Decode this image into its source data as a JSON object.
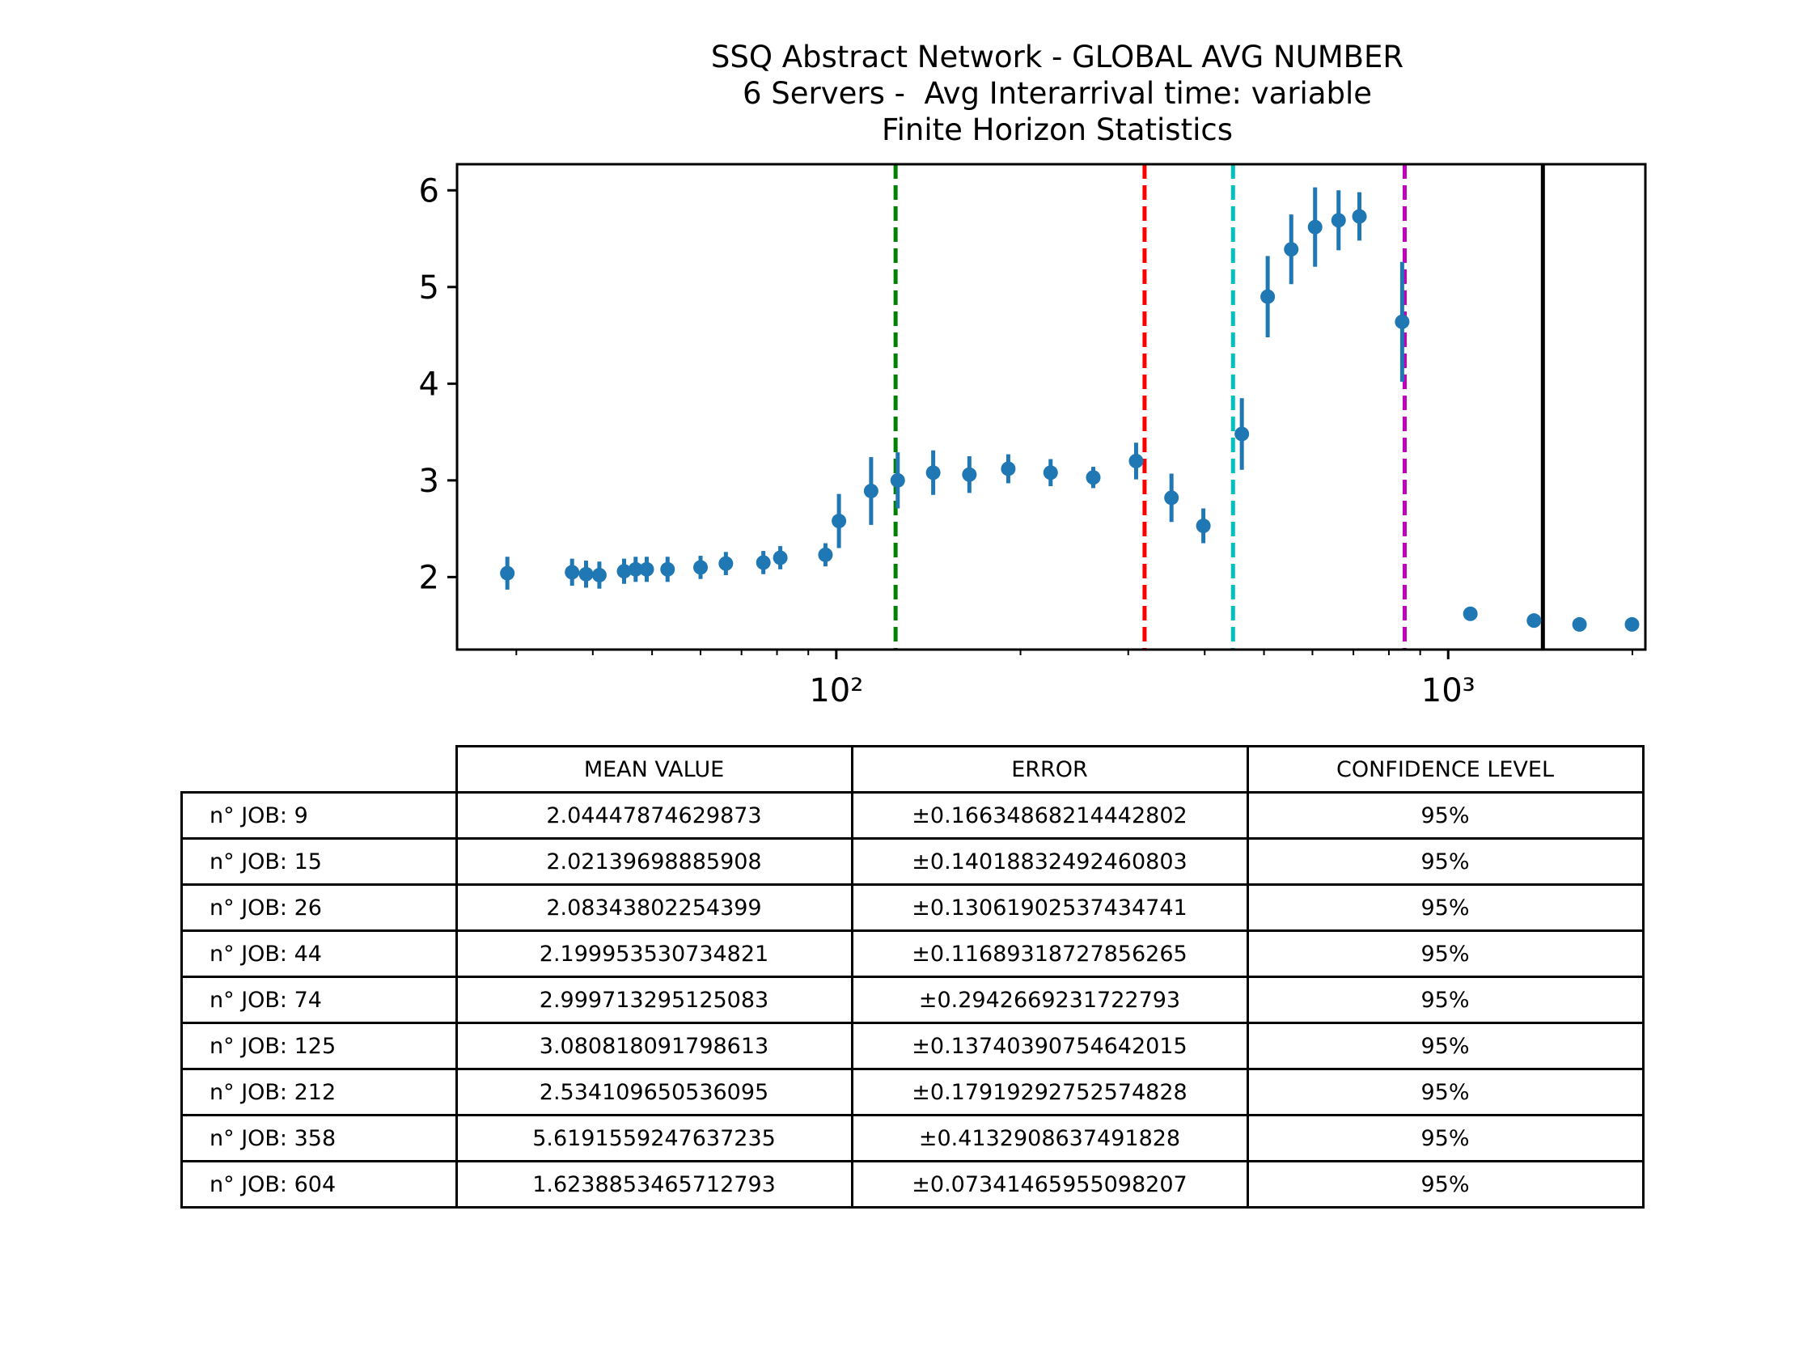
{
  "title_lines": [
    "SSQ Abstract Network - GLOBAL AVG NUMBER",
    "6 Servers -  Avg Interarrival time: variable",
    "Finite Horizon Statistics"
  ],
  "chart_data": {
    "type": "scatter",
    "title": "SSQ Abstract Network - GLOBAL AVG NUMBER\n6 Servers -  Avg Interarrival time: variable\nFinite Horizon Statistics",
    "xlabel": "",
    "ylabel": "",
    "xscale": "log",
    "xlim": [
      24,
      2100
    ],
    "ylim": [
      1.25,
      6.27
    ],
    "grid": false,
    "xticks": [
      {
        "value": 100,
        "label": "10²"
      },
      {
        "value": 1000,
        "label": "10³"
      }
    ],
    "yticks": [
      2,
      3,
      4,
      5,
      6
    ],
    "marker_color": "#1f77b4",
    "points": [
      {
        "x": 29,
        "y": 2.04,
        "err": 0.17
      },
      {
        "x": 37,
        "y": 2.05,
        "err": 0.14
      },
      {
        "x": 39,
        "y": 2.03,
        "err": 0.14
      },
      {
        "x": 41,
        "y": 2.02,
        "err": 0.14
      },
      {
        "x": 45,
        "y": 2.06,
        "err": 0.13
      },
      {
        "x": 47,
        "y": 2.08,
        "err": 0.13
      },
      {
        "x": 49,
        "y": 2.08,
        "err": 0.13
      },
      {
        "x": 53,
        "y": 2.08,
        "err": 0.13
      },
      {
        "x": 60,
        "y": 2.1,
        "err": 0.12
      },
      {
        "x": 66,
        "y": 2.14,
        "err": 0.12
      },
      {
        "x": 76,
        "y": 2.15,
        "err": 0.12
      },
      {
        "x": 81,
        "y": 2.2,
        "err": 0.12
      },
      {
        "x": 96,
        "y": 2.23,
        "err": 0.12
      },
      {
        "x": 101,
        "y": 2.58,
        "err": 0.28
      },
      {
        "x": 114,
        "y": 2.89,
        "err": 0.35
      },
      {
        "x": 126,
        "y": 3.0,
        "err": 0.29
      },
      {
        "x": 144,
        "y": 3.08,
        "err": 0.23
      },
      {
        "x": 165,
        "y": 3.06,
        "err": 0.19
      },
      {
        "x": 191,
        "y": 3.12,
        "err": 0.15
      },
      {
        "x": 224,
        "y": 3.08,
        "err": 0.14
      },
      {
        "x": 263,
        "y": 3.03,
        "err": 0.11
      },
      {
        "x": 309,
        "y": 3.2,
        "err": 0.19
      },
      {
        "x": 353,
        "y": 2.82,
        "err": 0.25
      },
      {
        "x": 398,
        "y": 2.53,
        "err": 0.18
      },
      {
        "x": 460,
        "y": 3.48,
        "err": 0.37
      },
      {
        "x": 507,
        "y": 4.9,
        "err": 0.42
      },
      {
        "x": 554,
        "y": 5.39,
        "err": 0.36
      },
      {
        "x": 606,
        "y": 5.62,
        "err": 0.41
      },
      {
        "x": 662,
        "y": 5.69,
        "err": 0.31
      },
      {
        "x": 716,
        "y": 5.73,
        "err": 0.25
      },
      {
        "x": 841,
        "y": 4.64,
        "err": 0.62
      },
      {
        "x": 1087,
        "y": 1.62,
        "err": 0.07
      },
      {
        "x": 1381,
        "y": 1.55,
        "err": 0.05
      },
      {
        "x": 1639,
        "y": 1.51,
        "err": 0.04
      },
      {
        "x": 1997,
        "y": 1.51,
        "err": 0.03
      }
    ],
    "vlines": [
      {
        "x": 125,
        "color": "#008000",
        "style": "dashed"
      },
      {
        "x": 319,
        "color": "#ff0000",
        "style": "dashed"
      },
      {
        "x": 445,
        "color": "#00bfbf",
        "style": "dashed"
      },
      {
        "x": 849,
        "color": "#bf00bf",
        "style": "dashed"
      },
      {
        "x": 1428,
        "color": "#000000",
        "style": "solid"
      }
    ]
  },
  "table": {
    "headers": [
      "MEAN VALUE",
      "ERROR",
      "CONFIDENCE LEVEL"
    ],
    "rows": [
      {
        "label": "n° JOB: 9",
        "mean": "2.04447874629873",
        "error": "±0.16634868214442802",
        "conf": "95%"
      },
      {
        "label": "n° JOB: 15",
        "mean": "2.02139698885908",
        "error": "±0.14018832492460803",
        "conf": "95%"
      },
      {
        "label": "n° JOB: 26",
        "mean": "2.08343802254399",
        "error": "±0.13061902537434741",
        "conf": "95%"
      },
      {
        "label": "n° JOB: 44",
        "mean": "2.199953530734821",
        "error": "±0.11689318727856265",
        "conf": "95%"
      },
      {
        "label": "n° JOB: 74",
        "mean": "2.999713295125083",
        "error": "±0.2942669231722793",
        "conf": "95%"
      },
      {
        "label": "n° JOB: 125",
        "mean": "3.080818091798613",
        "error": "±0.13740390754642015",
        "conf": "95%"
      },
      {
        "label": "n° JOB: 212",
        "mean": "2.534109650536095",
        "error": "±0.17919292752574828",
        "conf": "95%"
      },
      {
        "label": "n° JOB: 358",
        "mean": "5.6191559247637235",
        "error": "±0.4132908637491828",
        "conf": "95%"
      },
      {
        "label": "n° JOB: 604",
        "mean": "1.6238853465712793",
        "error": "±0.07341465955098207",
        "conf": "95%"
      }
    ]
  }
}
